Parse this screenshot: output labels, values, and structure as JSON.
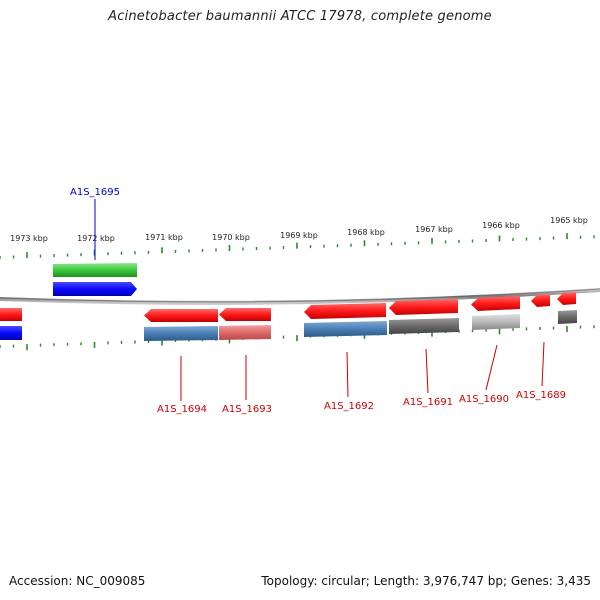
{
  "title": "Acinetobacter baumannii ATCC 17978, complete genome",
  "footer": {
    "accession": "Accession: NC_009085",
    "topology": "Topology: circular; Length: 3,976,747 bp; Genes: 3,435"
  },
  "colors": {
    "scale": "#2a8a2a",
    "backbone": "#7a7a7a",
    "forward_gene_label": "#0000cc",
    "reverse_gene_label": "#cc0000",
    "gene_red": "#ff1a1a",
    "gene_blue": "#0a0aff",
    "gene_green": "#3cc83c",
    "feat_steelblue": "#4a7fb5",
    "feat_pink": "#e06a6a",
    "feat_darkgray": "#6a6a6a",
    "feat_lightgray": "#b8b8b8"
  },
  "scale_labels": [
    "1973 kbp",
    "1972 kbp",
    "1971 kbp",
    "1970 kbp",
    "1969 kbp",
    "1968 kbp",
    "1967 kbp",
    "1966 kbp",
    "1965 kbp"
  ],
  "gene_labels": {
    "forward": [
      "A1S_1695"
    ],
    "reverse": [
      "A1S_1694",
      "A1S_1693",
      "A1S_1692",
      "A1S_1691",
      "A1S_1690",
      "A1S_1689"
    ]
  }
}
